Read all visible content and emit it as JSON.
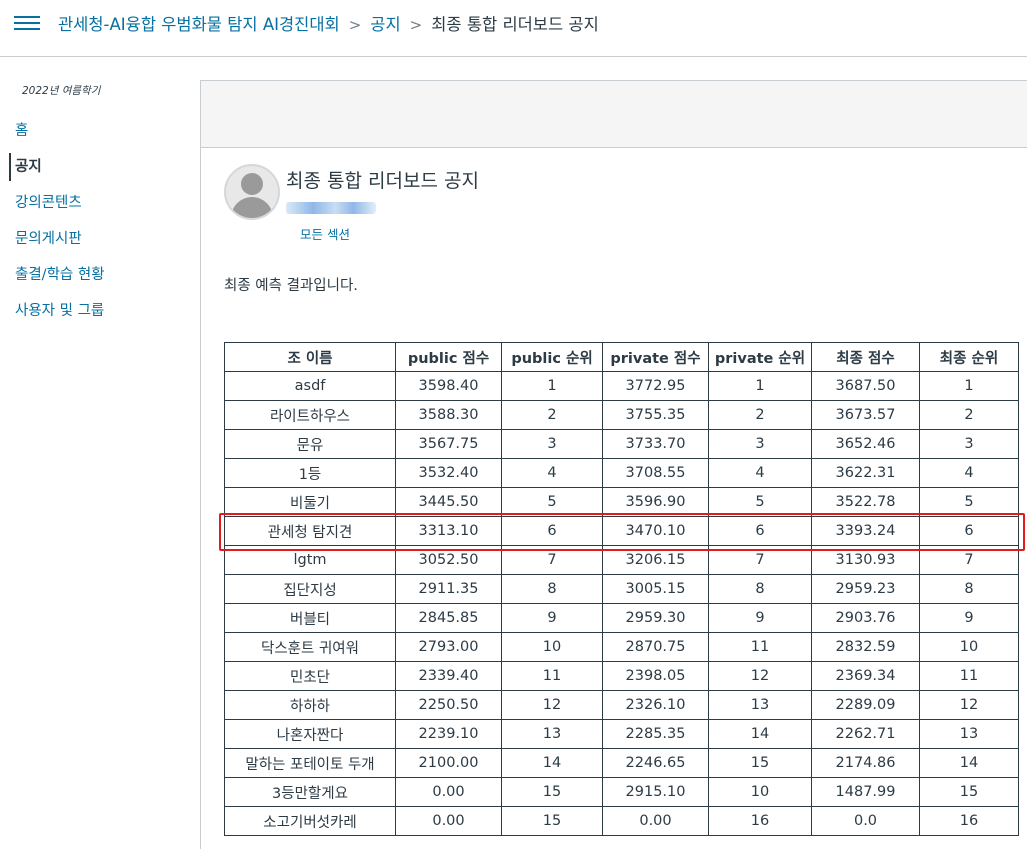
{
  "header": {
    "course": "관세청-AI융합 우범화물 탐지 AI경진대회",
    "section": "공지",
    "current": "최종 통합 리더보드 공지",
    "separator": ">"
  },
  "sidebar": {
    "term": "2022년 여름학기",
    "items": [
      {
        "label": "홈",
        "active": false
      },
      {
        "label": "공지",
        "active": true
      },
      {
        "label": "강의콘텐츠",
        "active": false
      },
      {
        "label": "문의게시판",
        "active": false
      },
      {
        "label": "출결/학습 현황",
        "active": false
      },
      {
        "label": "사용자 및 그룹",
        "active": false
      }
    ]
  },
  "post": {
    "title": "최종 통합 리더보드 공지",
    "sections_link": "모든 섹션",
    "body": "최종 예측 결과입니다."
  },
  "table": {
    "headers": [
      "조 이름",
      "public  점수",
      "public 순위",
      "private 점수",
      "private 순위",
      "최종 점수",
      "최종 순위"
    ],
    "rows": [
      [
        "asdf",
        "3598.40",
        "1",
        "3772.95",
        "1",
        "3687.50",
        "1"
      ],
      [
        "라이트하우스",
        "3588.30",
        "2",
        "3755.35",
        "2",
        "3673.57",
        "2"
      ],
      [
        "문유",
        "3567.75",
        "3",
        "3733.70",
        "3",
        "3652.46",
        "3"
      ],
      [
        "1등",
        "3532.40",
        "4",
        "3708.55",
        "4",
        "3622.31",
        "4"
      ],
      [
        "비둘기",
        "3445.50",
        "5",
        "3596.90",
        "5",
        "3522.78",
        "5"
      ],
      [
        "관세청 탐지견",
        "3313.10",
        "6",
        "3470.10",
        "6",
        "3393.24",
        "6"
      ],
      [
        "lgtm",
        "3052.50",
        "7",
        "3206.15",
        "7",
        "3130.93",
        "7"
      ],
      [
        "집단지성",
        "2911.35",
        "8",
        "3005.15",
        "8",
        "2959.23",
        "8"
      ],
      [
        "버블티",
        "2845.85",
        "9",
        "2959.30",
        "9",
        "2903.76",
        "9"
      ],
      [
        "닥스훈트 귀여워",
        "2793.00",
        "10",
        "2870.75",
        "11",
        "2832.59",
        "10"
      ],
      [
        "민초단",
        "2339.40",
        "11",
        "2398.05",
        "12",
        "2369.34",
        "11"
      ],
      [
        "하하하",
        "2250.50",
        "12",
        "2326.10",
        "13",
        "2289.09",
        "12"
      ],
      [
        "나혼자짠다",
        "2239.10",
        "13",
        "2285.35",
        "14",
        "2262.71",
        "13"
      ],
      [
        "말하는 포테이토 두개",
        "2100.00",
        "14",
        "2246.65",
        "15",
        "2174.86",
        "14"
      ],
      [
        "3등만할게요",
        "0.00",
        "15",
        "2915.10",
        "10",
        "1487.99",
        "15"
      ],
      [
        "소고기버섯카레",
        "0.00",
        "15",
        "0.00",
        "16",
        "0.0",
        "16"
      ]
    ]
  },
  "colors": {
    "link": "#0770a3",
    "text": "#2d3b45",
    "highlight": "#e21b1b"
  }
}
